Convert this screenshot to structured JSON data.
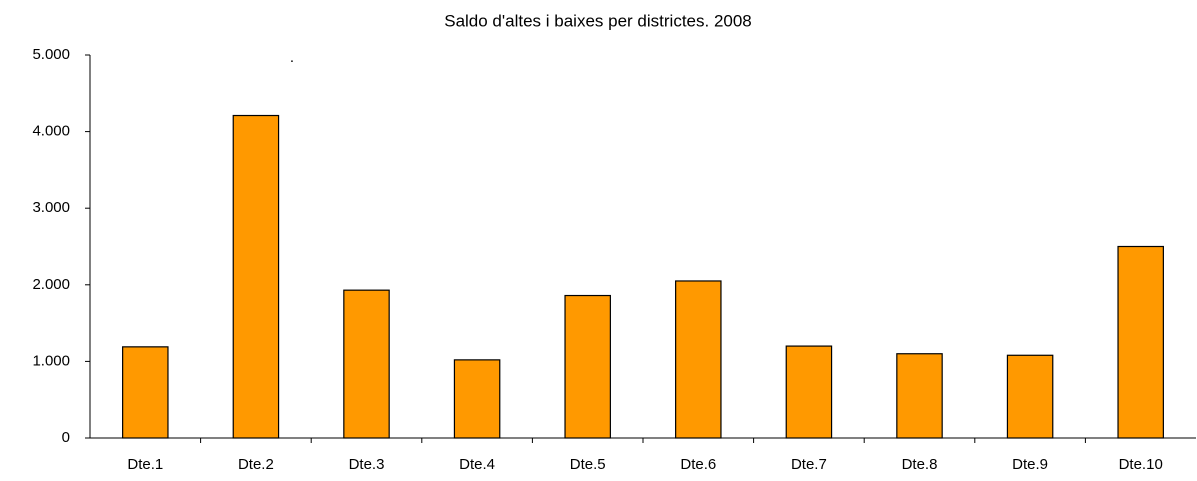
{
  "chart_data": {
    "type": "bar",
    "title": "Saldo d'altes i baixes per districtes. 2008",
    "annotation": ".",
    "categories": [
      "Dte.1",
      "Dte.2",
      "Dte.3",
      "Dte.4",
      "Dte.5",
      "Dte.6",
      "Dte.7",
      "Dte.8",
      "Dte.9",
      "Dte.10"
    ],
    "values": [
      1190,
      4210,
      1930,
      1020,
      1860,
      2050,
      1200,
      1100,
      1080,
      2500
    ],
    "color": "#ff9900",
    "ylim": [
      0,
      5000
    ],
    "yticks": [
      0,
      {
        "value": 1000,
        "label": "1.000"
      },
      {
        "value": 2000,
        "label": "2.000"
      },
      {
        "value": 3000,
        "label": "3.000"
      },
      {
        "value": 4000,
        "label": "4.000"
      },
      {
        "value": 5000,
        "label": "5.000"
      }
    ],
    "grid": false
  }
}
